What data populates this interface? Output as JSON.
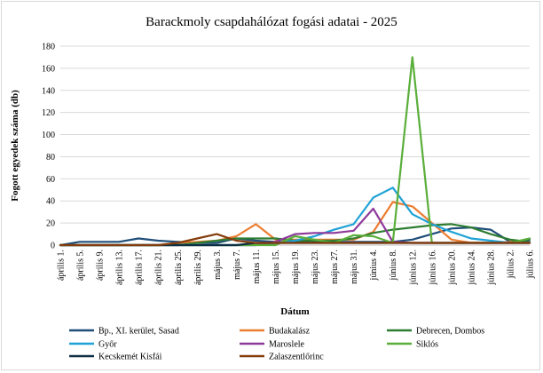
{
  "chart_data": {
    "type": "line",
    "title": "Barackmoly csapdahálózat fogási adatai - 2025",
    "xlabel": "Dátum",
    "ylabel": "Fogott egyedek száma (db)",
    "ylim": [
      0,
      180
    ],
    "yticks": [
      0,
      20,
      40,
      60,
      80,
      100,
      120,
      140,
      160,
      180
    ],
    "grid": true,
    "legend_position": "bottom",
    "categories": [
      "április 1.",
      "április 5.",
      "április 9.",
      "április 13.",
      "április 17.",
      "április 21.",
      "április 25.",
      "április 29.",
      "május 3.",
      "május 7.",
      "május 11.",
      "május 15.",
      "május 19.",
      "május 23.",
      "május 27.",
      "május 31.",
      "június 4.",
      "június 8.",
      "június 12.",
      "június 16.",
      "június 20.",
      "június 24.",
      "június 28.",
      "július 2.",
      "július 6."
    ],
    "series": [
      {
        "name": "Bp., XI. kerület, Sasad",
        "color": "#1f4e79",
        "values": [
          0,
          3,
          3,
          3,
          6,
          4,
          3,
          2,
          2,
          6,
          4,
          3,
          3,
          3,
          3,
          3,
          3,
          3,
          5,
          10,
          15,
          16,
          14,
          3,
          5
        ]
      },
      {
        "name": "Budakalász",
        "color": "#ed7d31",
        "values": [
          0,
          0,
          0,
          0,
          0,
          0,
          2,
          3,
          4,
          8,
          19,
          5,
          5,
          5,
          5,
          5,
          12,
          39,
          35,
          20,
          5,
          2,
          2,
          3,
          3
        ]
      },
      {
        "name": "Debrecen, Dombos",
        "color": "#2e7d32",
        "values": [
          0,
          0,
          0,
          0,
          0,
          0,
          0,
          2,
          4,
          6,
          6,
          6,
          4,
          4,
          4,
          6,
          11,
          14,
          16,
          18,
          19,
          16,
          10,
          5,
          3
        ]
      },
      {
        "name": "Győr",
        "color": "#1fa2d6",
        "values": [
          0,
          0,
          0,
          0,
          0,
          0,
          0,
          0,
          0,
          0,
          0,
          2,
          4,
          8,
          14,
          19,
          43,
          52,
          28,
          19,
          12,
          6,
          4,
          2,
          2
        ]
      },
      {
        "name": "Maroslele",
        "color": "#8e3a9a",
        "values": [
          0,
          0,
          0,
          0,
          0,
          0,
          0,
          0,
          0,
          0,
          0,
          3,
          10,
          11,
          11,
          13,
          33,
          3,
          2,
          2,
          2,
          2,
          2,
          2,
          2
        ]
      },
      {
        "name": "Siklós",
        "color": "#5aae3a",
        "values": [
          0,
          0,
          0,
          0,
          0,
          0,
          0,
          0,
          0,
          0,
          0,
          0,
          8,
          5,
          2,
          9,
          8,
          2,
          170,
          2,
          2,
          2,
          2,
          2,
          6
        ]
      },
      {
        "name": "Kecskemét Kisfái",
        "color": "#0b2e43",
        "values": [
          0,
          0,
          0,
          0,
          0,
          0,
          0,
          0,
          0,
          0,
          2,
          2,
          2,
          2,
          2,
          2,
          2,
          2,
          2,
          2,
          2,
          2,
          2,
          2,
          2
        ]
      },
      {
        "name": "Zalaszentlőrinc",
        "color": "#843c0c",
        "values": [
          0,
          0,
          0,
          0,
          0,
          0,
          2,
          6,
          10,
          4,
          2,
          2,
          2,
          2,
          2,
          2,
          2,
          2,
          2,
          2,
          2,
          2,
          2,
          2,
          2
        ]
      }
    ]
  }
}
